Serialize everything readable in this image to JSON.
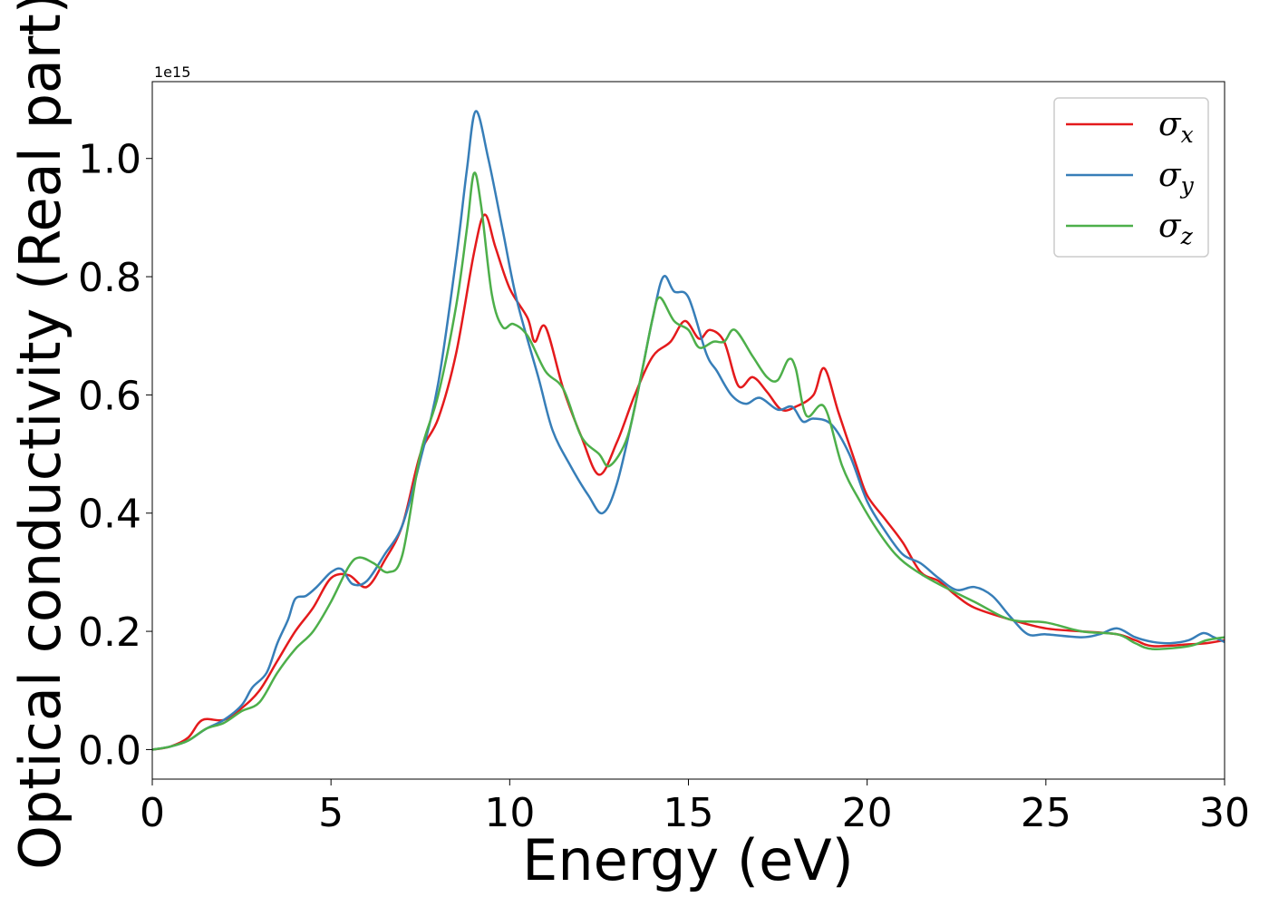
{
  "chart_data": {
    "type": "line",
    "title": "",
    "xlabel": "Energy (eV)",
    "ylabel": "Optical conductivity (Real part)",
    "y_offset_label": "1e15",
    "xlim": [
      0,
      30
    ],
    "ylim": [
      -0.05,
      1.13
    ],
    "x_ticks": [
      0,
      5,
      10,
      15,
      20,
      25,
      30
    ],
    "x_tick_labels": [
      "0",
      "5",
      "10",
      "15",
      "20",
      "25",
      "30"
    ],
    "y_ticks": [
      0.0,
      0.2,
      0.4,
      0.6,
      0.8,
      1.0
    ],
    "y_tick_labels": [
      "0.0",
      "0.2",
      "0.4",
      "0.6",
      "0.8",
      "1.0"
    ],
    "grid": false,
    "legend_position": "top-right",
    "series": [
      {
        "name": "σx",
        "legend_base": "σ",
        "legend_sub": "x",
        "color": "#e41a1c",
        "points": [
          [
            0,
            0
          ],
          [
            0.5,
            0.005
          ],
          [
            1,
            0.02
          ],
          [
            1.4,
            0.05
          ],
          [
            2,
            0.05
          ],
          [
            2.5,
            0.07
          ],
          [
            3,
            0.1
          ],
          [
            3.5,
            0.15
          ],
          [
            4,
            0.2
          ],
          [
            4.5,
            0.24
          ],
          [
            5,
            0.29
          ],
          [
            5.5,
            0.295
          ],
          [
            6,
            0.275
          ],
          [
            6.5,
            0.32
          ],
          [
            7,
            0.38
          ],
          [
            7.5,
            0.5
          ],
          [
            8,
            0.56
          ],
          [
            8.5,
            0.67
          ],
          [
            9,
            0.84
          ],
          [
            9.3,
            0.905
          ],
          [
            9.6,
            0.85
          ],
          [
            10,
            0.78
          ],
          [
            10.5,
            0.73
          ],
          [
            10.7,
            0.69
          ],
          [
            11,
            0.715
          ],
          [
            11.5,
            0.61
          ],
          [
            12,
            0.53
          ],
          [
            12.5,
            0.465
          ],
          [
            13,
            0.52
          ],
          [
            13.5,
            0.6
          ],
          [
            14,
            0.665
          ],
          [
            14.5,
            0.69
          ],
          [
            14.9,
            0.725
          ],
          [
            15.3,
            0.695
          ],
          [
            15.6,
            0.71
          ],
          [
            16,
            0.69
          ],
          [
            16.4,
            0.615
          ],
          [
            16.8,
            0.63
          ],
          [
            17.2,
            0.605
          ],
          [
            17.6,
            0.575
          ],
          [
            18,
            0.58
          ],
          [
            18.5,
            0.6
          ],
          [
            18.8,
            0.645
          ],
          [
            19.2,
            0.57
          ],
          [
            19.7,
            0.48
          ],
          [
            20,
            0.43
          ],
          [
            20.5,
            0.39
          ],
          [
            21,
            0.35
          ],
          [
            21.5,
            0.3
          ],
          [
            22,
            0.285
          ],
          [
            22.5,
            0.26
          ],
          [
            23,
            0.24
          ],
          [
            24,
            0.22
          ],
          [
            25,
            0.205
          ],
          [
            26,
            0.2
          ],
          [
            27,
            0.195
          ],
          [
            27.5,
            0.185
          ],
          [
            28,
            0.175
          ],
          [
            29,
            0.178
          ],
          [
            29.5,
            0.18
          ],
          [
            30,
            0.185
          ]
        ]
      },
      {
        "name": "σy",
        "legend_base": "σ",
        "legend_sub": "y",
        "color": "#377eb8",
        "points": [
          [
            0,
            0
          ],
          [
            0.5,
            0.005
          ],
          [
            1,
            0.015
          ],
          [
            1.5,
            0.035
          ],
          [
            2,
            0.05
          ],
          [
            2.5,
            0.075
          ],
          [
            2.8,
            0.105
          ],
          [
            3.2,
            0.13
          ],
          [
            3.5,
            0.18
          ],
          [
            3.8,
            0.22
          ],
          [
            4,
            0.255
          ],
          [
            4.3,
            0.26
          ],
          [
            4.6,
            0.275
          ],
          [
            5,
            0.3
          ],
          [
            5.3,
            0.305
          ],
          [
            5.6,
            0.28
          ],
          [
            6,
            0.285
          ],
          [
            6.5,
            0.33
          ],
          [
            7,
            0.38
          ],
          [
            7.5,
            0.49
          ],
          [
            8,
            0.62
          ],
          [
            8.5,
            0.83
          ],
          [
            8.8,
            0.98
          ],
          [
            9.05,
            1.08
          ],
          [
            9.4,
            1.0
          ],
          [
            9.8,
            0.88
          ],
          [
            10.2,
            0.76
          ],
          [
            10.8,
            0.63
          ],
          [
            11.2,
            0.54
          ],
          [
            11.7,
            0.48
          ],
          [
            12.2,
            0.43
          ],
          [
            12.6,
            0.4
          ],
          [
            13,
            0.45
          ],
          [
            13.5,
            0.58
          ],
          [
            14,
            0.73
          ],
          [
            14.3,
            0.8
          ],
          [
            14.6,
            0.775
          ],
          [
            15,
            0.765
          ],
          [
            15.5,
            0.67
          ],
          [
            15.8,
            0.64
          ],
          [
            16.2,
            0.6
          ],
          [
            16.6,
            0.585
          ],
          [
            17,
            0.595
          ],
          [
            17.5,
            0.575
          ],
          [
            17.9,
            0.58
          ],
          [
            18.2,
            0.555
          ],
          [
            18.5,
            0.56
          ],
          [
            19,
            0.55
          ],
          [
            19.5,
            0.5
          ],
          [
            20,
            0.42
          ],
          [
            20.5,
            0.37
          ],
          [
            21,
            0.33
          ],
          [
            21.5,
            0.315
          ],
          [
            22,
            0.29
          ],
          [
            22.5,
            0.27
          ],
          [
            23,
            0.275
          ],
          [
            23.5,
            0.26
          ],
          [
            24,
            0.225
          ],
          [
            24.5,
            0.195
          ],
          [
            25,
            0.195
          ],
          [
            26,
            0.19
          ],
          [
            26.5,
            0.195
          ],
          [
            27,
            0.205
          ],
          [
            27.5,
            0.19
          ],
          [
            28,
            0.182
          ],
          [
            28.5,
            0.18
          ],
          [
            29,
            0.185
          ],
          [
            29.4,
            0.197
          ],
          [
            29.7,
            0.19
          ],
          [
            30,
            0.182
          ]
        ]
      },
      {
        "name": "σz",
        "legend_base": "σ",
        "legend_sub": "z",
        "color": "#4daf4a",
        "points": [
          [
            0,
            0
          ],
          [
            0.5,
            0.005
          ],
          [
            1,
            0.015
          ],
          [
            1.5,
            0.035
          ],
          [
            2,
            0.045
          ],
          [
            2.5,
            0.065
          ],
          [
            3,
            0.08
          ],
          [
            3.5,
            0.13
          ],
          [
            4,
            0.17
          ],
          [
            4.5,
            0.2
          ],
          [
            5,
            0.25
          ],
          [
            5.5,
            0.31
          ],
          [
            5.8,
            0.325
          ],
          [
            6.2,
            0.315
          ],
          [
            6.6,
            0.3
          ],
          [
            7,
            0.33
          ],
          [
            7.5,
            0.5
          ],
          [
            8,
            0.6
          ],
          [
            8.5,
            0.75
          ],
          [
            8.8,
            0.88
          ],
          [
            9,
            0.975
          ],
          [
            9.2,
            0.92
          ],
          [
            9.5,
            0.77
          ],
          [
            9.8,
            0.715
          ],
          [
            10.1,
            0.72
          ],
          [
            10.5,
            0.7
          ],
          [
            11,
            0.64
          ],
          [
            11.5,
            0.61
          ],
          [
            12,
            0.53
          ],
          [
            12.5,
            0.5
          ],
          [
            12.8,
            0.48
          ],
          [
            13.3,
            0.53
          ],
          [
            13.7,
            0.64
          ],
          [
            14,
            0.73
          ],
          [
            14.2,
            0.765
          ],
          [
            14.6,
            0.725
          ],
          [
            15,
            0.71
          ],
          [
            15.3,
            0.68
          ],
          [
            15.7,
            0.69
          ],
          [
            16,
            0.69
          ],
          [
            16.3,
            0.71
          ],
          [
            16.8,
            0.665
          ],
          [
            17.2,
            0.63
          ],
          [
            17.5,
            0.625
          ],
          [
            17.8,
            0.66
          ],
          [
            18,
            0.645
          ],
          [
            18.3,
            0.565
          ],
          [
            18.8,
            0.58
          ],
          [
            19.3,
            0.48
          ],
          [
            19.8,
            0.42
          ],
          [
            20.3,
            0.37
          ],
          [
            20.8,
            0.33
          ],
          [
            21.3,
            0.305
          ],
          [
            22,
            0.28
          ],
          [
            23,
            0.25
          ],
          [
            24,
            0.22
          ],
          [
            25,
            0.215
          ],
          [
            26,
            0.2
          ],
          [
            27,
            0.195
          ],
          [
            27.5,
            0.18
          ],
          [
            28,
            0.17
          ],
          [
            29,
            0.175
          ],
          [
            29.5,
            0.185
          ],
          [
            30,
            0.19
          ]
        ]
      }
    ]
  }
}
